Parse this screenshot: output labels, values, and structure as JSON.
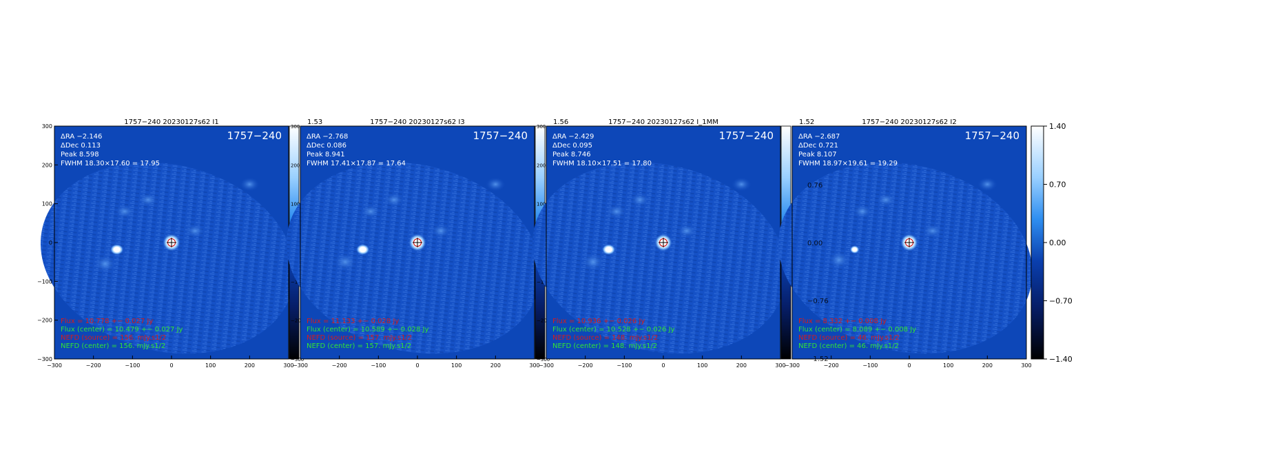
{
  "colors": {
    "map_background": "#0d47b8",
    "field_pattern": "#2c6cd6",
    "flux_text_red": "#d81b1b",
    "flux_text_green": "#32e632",
    "info_text": "#ffffff",
    "marker_red": "#cc0000"
  },
  "colorbar": {
    "ticks": [
      "1.40",
      "0.70",
      "0.00",
      "−0.70",
      "−1.40"
    ],
    "range": [
      -1.4,
      1.4
    ]
  },
  "chart_data": [
    {
      "type": "heatmap",
      "title": "1757−240  20230127s62  I1",
      "label": "1757−240",
      "xlim": [
        -300,
        300
      ],
      "ylim": [
        -300,
        300
      ],
      "x_ticks": [
        "−300",
        "−200",
        "−100",
        "0",
        "100",
        "200",
        "300"
      ],
      "y_ticks": [
        "300",
        "200",
        "100",
        "0",
        "−100",
        "−200",
        "−300"
      ],
      "cbar_top": "",
      "cbar_right_ticks": [
        "300",
        "200",
        "100",
        "0",
        "−100",
        "−200",
        "−300"
      ],
      "info": [
        "ΔRA −2.146",
        "ΔDec 0.113",
        "Peak 8.598",
        "FWHM 18.30×17.60 = 17.95"
      ],
      "flux_red": "Flux = 10.778 +− 0.027 Jy",
      "flux_center": "Flux (center) = 10.479 +− 0.027 Jy",
      "nefd_source": "NEFD (source) =  156. mJy.s1/2",
      "nefd_center": "NEFD (center) =  156. mJy.s1/2",
      "sources": [
        {
          "name": "1757-240",
          "x": 0,
          "y": 0,
          "peak": 8.598
        },
        {
          "x": -140,
          "y": -18,
          "note": "secondary"
        },
        {
          "x": -170,
          "y": -55,
          "note": "diffuse"
        }
      ]
    },
    {
      "type": "heatmap",
      "title": "1757−240  20230127s62  I3",
      "label": "1757−240",
      "xlim": [
        -300,
        300
      ],
      "ylim": [
        -300,
        300
      ],
      "x_ticks": [
        "−300",
        "−200",
        "−100",
        "0",
        "100",
        "200",
        "300"
      ],
      "y_ticks": [],
      "cbar_top": "1.53",
      "cbar_right_ticks": [
        "300",
        "200",
        "100",
        "0",
        "−100",
        "−200",
        "−300"
      ],
      "info": [
        "ΔRA −2.768",
        "ΔDec 0.086",
        "Peak 8.941",
        "FWHM 17.41×17.87 = 17.64"
      ],
      "flux_red": "Flux = 11.133 +− 0.028 Jy",
      "flux_center": "Flux (center) = 10.589 +− 0.028 Jy",
      "nefd_source": "NEFD (source) =  157. mJy.s1/2",
      "nefd_center": "NEFD (center) =  157. mJy.s1/2",
      "sources": [
        {
          "name": "1757-240",
          "x": 0,
          "y": 0,
          "peak": 8.941
        },
        {
          "x": -140,
          "y": -18,
          "note": "secondary"
        },
        {
          "x": -185,
          "y": -50,
          "note": "diffuse"
        }
      ]
    },
    {
      "type": "heatmap",
      "title": "1757−240  20230127s62  I_1MM",
      "label": "1757−240",
      "xlim": [
        -300,
        300
      ],
      "ylim": [
        -300,
        300
      ],
      "x_ticks": [
        "−300",
        "−200",
        "−100",
        "0",
        "100",
        "200",
        "300"
      ],
      "y_ticks": [],
      "cbar_top": "1.56",
      "cbar_right_ticks": [],
      "info": [
        "ΔRA −2.429",
        "ΔDec 0.095",
        "Peak 8.746",
        "FWHM 18.10×17.51 = 17.80"
      ],
      "flux_red": "Flux = 10.936 +− 0.026 Jy",
      "flux_center": "Flux (center) = 10.528 +− 0.026 Jy",
      "nefd_source": "NEFD (source) =  148. mJy.s1/2",
      "nefd_center": "NEFD (center) =  148. mJy.s1/2",
      "sources": [
        {
          "name": "1757-240",
          "x": 0,
          "y": 0,
          "peak": 8.746
        },
        {
          "x": -140,
          "y": -18,
          "note": "secondary"
        },
        {
          "x": -180,
          "y": -50,
          "note": "diffuse"
        }
      ]
    },
    {
      "type": "heatmap",
      "title": "1757−240  20230127s62  I2",
      "label": "1757−240",
      "xlim": [
        -300,
        300
      ],
      "ylim": [
        -300,
        300
      ],
      "x_ticks": [
        "−300",
        "−200",
        "−100",
        "0",
        "100",
        "200",
        "300"
      ],
      "y_ticks": [],
      "cbar_top": "1.52",
      "cbar_right_ticks": [],
      "inner_ticks": [
        "0.76",
        "0.00",
        "−0.76",
        "−1.52"
      ],
      "info": [
        "ΔRA −2.687",
        "ΔDec 0.721",
        "Peak 8.107",
        "FWHM 18.97×19.61 = 19.29"
      ],
      "flux_red": "Flux = 8.332 +− 0.008 Jy",
      "flux_center": "Flux (center) = 8.089 +− 0.008 Jy",
      "nefd_source": "NEFD (source) =   46. mJy.s1/2",
      "nefd_center": "NEFD (center) =   46. mJy.s1/2",
      "sources": [
        {
          "name": "1757-240",
          "x": 0,
          "y": 0,
          "peak": 8.107
        },
        {
          "x": -140,
          "y": -18,
          "note": "secondary"
        },
        {
          "x": -180,
          "y": -45,
          "note": "diffuse"
        }
      ]
    }
  ]
}
